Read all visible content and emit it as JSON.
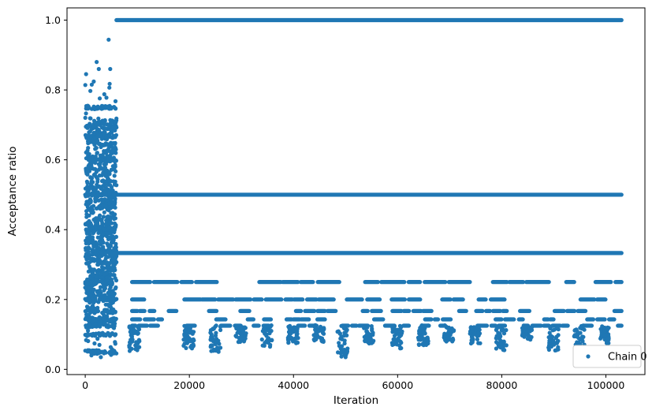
{
  "chart_data": {
    "type": "scatter",
    "title": "",
    "xlabel": "Iteration",
    "ylabel": "Acceptance ratio",
    "xlim": [
      -3500,
      107500
    ],
    "ylim": [
      -0.015,
      1.035
    ],
    "xticks": [
      0,
      20000,
      40000,
      60000,
      80000,
      100000
    ],
    "xtick_labels": [
      "0",
      "20000",
      "40000",
      "60000",
      "80000",
      "100000"
    ],
    "yticks": [
      0.0,
      0.2,
      0.4,
      0.6,
      0.8,
      1.0
    ],
    "ytick_labels": [
      "0.0",
      "0.2",
      "0.4",
      "0.6",
      "0.8",
      "1.0"
    ],
    "grid": false,
    "legend": {
      "position": "lower-right",
      "entries": [
        "Chain 0"
      ]
    },
    "marker_color": "#1f77b4",
    "series": [
      {
        "name": "Chain 0",
        "iterations": [
          0,
          103000
        ],
        "level_bands": [
          {
            "y": 1.0,
            "x_range": [
              6000,
              103000
            ],
            "density": "continuous"
          },
          {
            "y": 0.5,
            "x_range": [
              0,
              103000
            ],
            "density": "continuous"
          },
          {
            "y": 0.333,
            "x_range": [
              6000,
              103000
            ],
            "density": "continuous"
          },
          {
            "y": 0.25,
            "x_range": [
              6000,
              103000
            ],
            "density": "dense"
          },
          {
            "y": 0.2,
            "x_range": [
              6000,
              103000
            ],
            "density": "medium"
          },
          {
            "y": 0.167,
            "x_range": [
              6000,
              103000
            ],
            "density": "sparse"
          },
          {
            "y": 0.143,
            "x_range": [
              6000,
              103000
            ],
            "density": "sparse"
          },
          {
            "y": 0.125,
            "x_range": [
              6000,
              103000
            ],
            "density": "sparse"
          }
        ],
        "burn_in": {
          "x_range": [
            0,
            6000
          ],
          "y_range": [
            0.04,
            0.94
          ]
        },
        "dip_minima": [
          {
            "x": 10000,
            "y": 0.055
          },
          {
            "x": 20500,
            "y": 0.06
          },
          {
            "x": 25600,
            "y": 0.05
          },
          {
            "x": 30500,
            "y": 0.08
          },
          {
            "x": 35500,
            "y": 0.065
          },
          {
            "x": 40500,
            "y": 0.075
          },
          {
            "x": 45500,
            "y": 0.08
          },
          {
            "x": 50000,
            "y": 0.035
          },
          {
            "x": 55000,
            "y": 0.075
          },
          {
            "x": 60500,
            "y": 0.06
          },
          {
            "x": 65500,
            "y": 0.07
          },
          {
            "x": 70500,
            "y": 0.08
          },
          {
            "x": 75500,
            "y": 0.075
          },
          {
            "x": 80500,
            "y": 0.055
          },
          {
            "x": 85500,
            "y": 0.085
          },
          {
            "x": 90500,
            "y": 0.055
          },
          {
            "x": 95500,
            "y": 0.06
          },
          {
            "x": 100500,
            "y": 0.075
          }
        ]
      }
    ]
  }
}
